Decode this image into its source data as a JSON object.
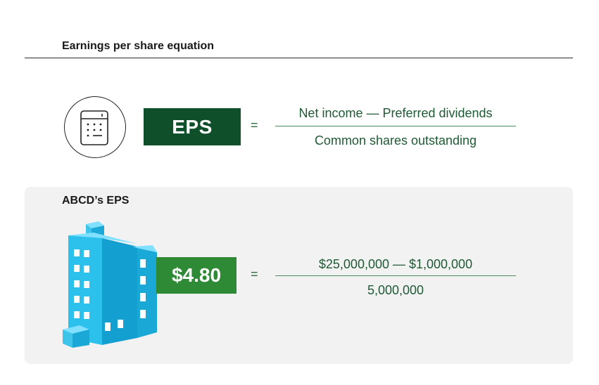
{
  "header": {
    "title": "Earnings per share equation"
  },
  "formula": {
    "icon": "calculator-icon",
    "label": "EPS",
    "equals": "=",
    "numerator": "Net income — Preferred dividends",
    "denominator": "Common shares outstanding",
    "label_color": "#0f4f2a"
  },
  "example": {
    "title": "ABCD’s EPS",
    "icon": "building-icon",
    "value": "$4.80",
    "equals": "=",
    "numerator": "$25,000,000 — $1,000,000",
    "denominator": "5,000,000",
    "value_color": "#2f8a35",
    "panel_color": "#f2f2f2"
  }
}
